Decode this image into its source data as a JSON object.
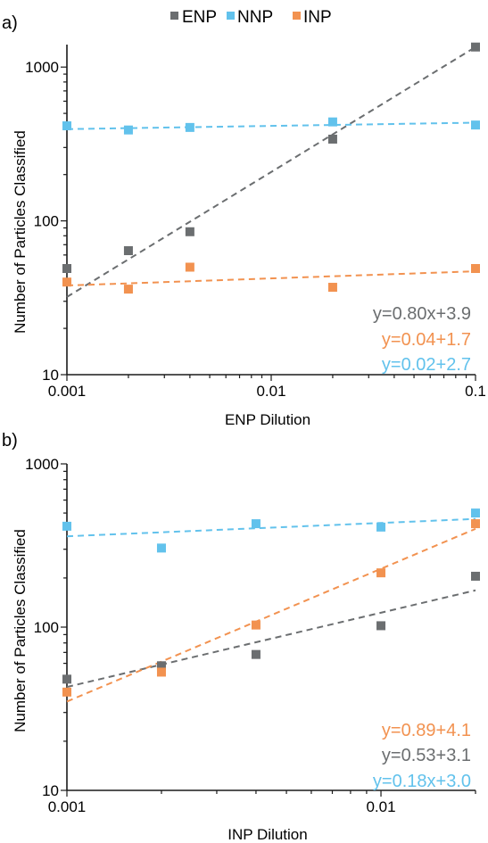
{
  "legend": [
    {
      "label": "ENP",
      "color": "#6b6e70"
    },
    {
      "label": "NNP",
      "color": "#62c2ec"
    },
    {
      "label": "INP",
      "color": "#f29250"
    }
  ],
  "chart_data": [
    {
      "type": "scatter",
      "panel_label": "a)",
      "xlabel": "ENP Dilution",
      "ylabel": "Number of Particles Classified",
      "xscale": "log",
      "yscale": "log",
      "xlim": [
        0.001,
        0.1
      ],
      "ylim": [
        10,
        1400
      ],
      "xticks": [
        {
          "value": 0.001,
          "label": "0.001"
        },
        {
          "value": 0.01,
          "label": "0.01"
        },
        {
          "value": 0.1,
          "label": "0.1"
        }
      ],
      "yticks": [
        {
          "value": 10,
          "label": "10"
        },
        {
          "value": 100,
          "label": "100"
        },
        {
          "value": 1000,
          "label": "1000"
        }
      ],
      "series": [
        {
          "name": "ENP",
          "color": "#6b6e70",
          "x": [
            0.001,
            0.002,
            0.004,
            0.02,
            0.1
          ],
          "y": [
            49,
            64,
            85,
            340,
            1350
          ],
          "fit": {
            "x": [
              0.001,
              0.1
            ],
            "y": [
              32,
              1350
            ]
          }
        },
        {
          "name": "NNP",
          "color": "#62c2ec",
          "x": [
            0.001,
            0.002,
            0.004,
            0.02,
            0.1
          ],
          "y": [
            415,
            390,
            405,
            440,
            420
          ],
          "fit": {
            "x": [
              0.001,
              0.1
            ],
            "y": [
              395,
              435
            ]
          }
        },
        {
          "name": "INP",
          "color": "#f29250",
          "x": [
            0.001,
            0.002,
            0.004,
            0.02,
            0.1
          ],
          "y": [
            40,
            36,
            50,
            37,
            49
          ],
          "fit": {
            "x": [
              0.001,
              0.1
            ],
            "y": [
              38,
              47
            ]
          }
        }
      ],
      "annotations": [
        {
          "text": "y=0.80x+3.9",
          "color": "#6b6e70"
        },
        {
          "text": "y=0.04+1.7",
          "color": "#f29250"
        },
        {
          "text": "y=0.02+2.7",
          "color": "#62c2ec"
        }
      ]
    },
    {
      "type": "scatter",
      "panel_label": "b)",
      "xlabel": "INP Dilution",
      "ylabel": "Number of Particles Classified",
      "xscale": "log",
      "yscale": "log",
      "xlim": [
        0.001,
        0.02
      ],
      "ylim": [
        10,
        1000
      ],
      "xticks": [
        {
          "value": 0.001,
          "label": "0.001"
        },
        {
          "value": 0.01,
          "label": "0.01"
        }
      ],
      "yticks": [
        {
          "value": 10,
          "label": "10"
        },
        {
          "value": 100,
          "label": "100"
        },
        {
          "value": 1000,
          "label": "1000"
        }
      ],
      "series": [
        {
          "name": "ENP",
          "color": "#6b6e70",
          "x": [
            0.001,
            0.002,
            0.004,
            0.01,
            0.02
          ],
          "y": [
            48,
            58,
            68,
            102,
            205
          ],
          "fit": {
            "x": [
              0.001,
              0.02
            ],
            "y": [
              43,
              168
            ]
          }
        },
        {
          "name": "NNP",
          "color": "#62c2ec",
          "x": [
            0.001,
            0.002,
            0.004,
            0.01,
            0.02
          ],
          "y": [
            415,
            305,
            430,
            410,
            500
          ],
          "fit": {
            "x": [
              0.001,
              0.02
            ],
            "y": [
              360,
              460
            ]
          }
        },
        {
          "name": "INP",
          "color": "#f29250",
          "x": [
            0.001,
            0.002,
            0.004,
            0.01,
            0.02
          ],
          "y": [
            40,
            53,
            103,
            215,
            430
          ],
          "fit": {
            "x": [
              0.001,
              0.02
            ],
            "y": [
              35,
              400
            ]
          }
        }
      ],
      "annotations": [
        {
          "text": "y=0.89+4.1",
          "color": "#f29250"
        },
        {
          "text": "y=0.53+3.1",
          "color": "#6b6e70"
        },
        {
          "text": "y=0.18x+3.0",
          "color": "#62c2ec"
        }
      ]
    }
  ]
}
